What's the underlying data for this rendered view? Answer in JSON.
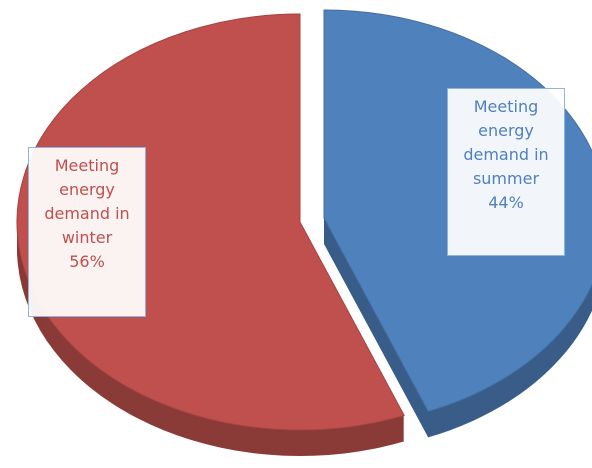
{
  "chart_data": {
    "type": "pie",
    "categories": [
      "Meeting energy demand in summer",
      "Meeting energy demand in winter"
    ],
    "values": [
      44,
      56
    ],
    "value_labels": [
      "44%",
      "56%"
    ],
    "colors": [
      "#4f81bd",
      "#c0504d"
    ]
  }
}
